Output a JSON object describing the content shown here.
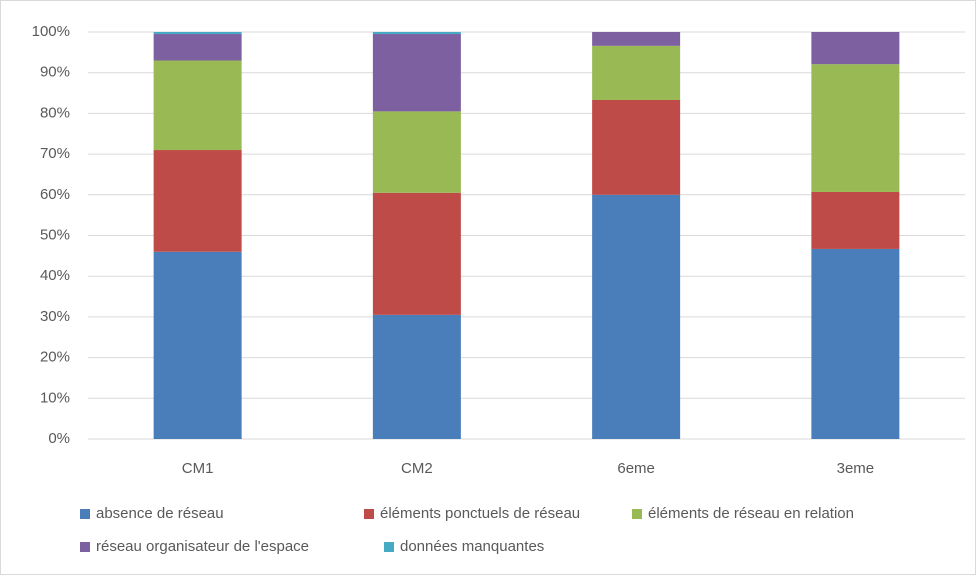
{
  "chart_data": {
    "type": "stacked_bar",
    "categories": [
      "CM1",
      "CM2",
      "6eme",
      "3eme"
    ],
    "series": [
      {
        "name": "absence de réseau",
        "color": "#4a7ebb",
        "values": [
          46,
          30.5,
          60,
          46.7
        ]
      },
      {
        "name": "éléments ponctuels de réseau",
        "color": "#be4b48",
        "values": [
          25,
          30,
          23.3,
          14
        ]
      },
      {
        "name": "éléments de réseau en relation",
        "color": "#98b954",
        "values": [
          22,
          20,
          13.3,
          31.4
        ]
      },
      {
        "name": "réseau organisateur de l'espace",
        "color": "#7d60a0",
        "values": [
          6.5,
          19,
          3.4,
          7.9
        ]
      },
      {
        "name": "données manquantes",
        "color": "#46aac5",
        "values": [
          0.5,
          0.5,
          0,
          0
        ]
      }
    ],
    "ylim": [
      0,
      100
    ],
    "yticks": [
      {
        "value": 0,
        "label": "0%"
      },
      {
        "value": 10,
        "label": "10%"
      },
      {
        "value": 20,
        "label": "20%"
      },
      {
        "value": 30,
        "label": "30%"
      },
      {
        "value": 40,
        "label": "40%"
      },
      {
        "value": 50,
        "label": "50%"
      },
      {
        "value": 60,
        "label": "60%"
      },
      {
        "value": 70,
        "label": "70%"
      },
      {
        "value": 80,
        "label": "80%"
      },
      {
        "value": 90,
        "label": "90%"
      },
      {
        "value": 100,
        "label": "100%"
      }
    ],
    "grid": true
  }
}
